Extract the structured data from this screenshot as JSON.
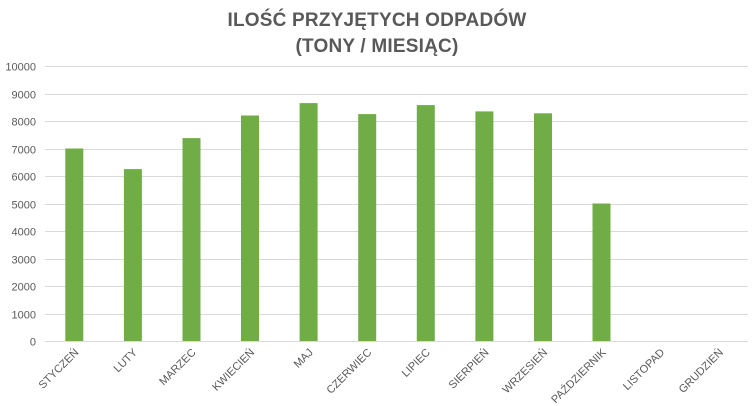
{
  "chart_data": {
    "type": "bar",
    "title": "ILOŚĆ PRZYJĘTYCH ODPADÓW",
    "subtitle": "(TONY / MIESIĄC)",
    "categories": [
      "STYCZEŃ",
      "LUTY",
      "MARZEC",
      "KWIECIEŃ",
      "MAJ",
      "CZERWIEC",
      "LIPIEC",
      "SIERPIEŃ",
      "WRZESIEŃ",
      "PAŹDZIERNIK",
      "LISTOPAD",
      "GRUDZIEŃ"
    ],
    "values": [
      7000,
      6250,
      7380,
      8200,
      8650,
      8250,
      8580,
      8350,
      8280,
      5000,
      null,
      null
    ],
    "ylim": [
      0,
      10000
    ],
    "yticks": [
      "0",
      "1000",
      "2000",
      "3000",
      "4000",
      "5000",
      "6000",
      "7000",
      "8000",
      "9000",
      "10000"
    ],
    "xlabel": "",
    "ylabel": "",
    "grid": true,
    "legend": "none",
    "bar_color": "#70ad47",
    "grid_color": "#d9d9d9",
    "text_color": "#595959"
  }
}
